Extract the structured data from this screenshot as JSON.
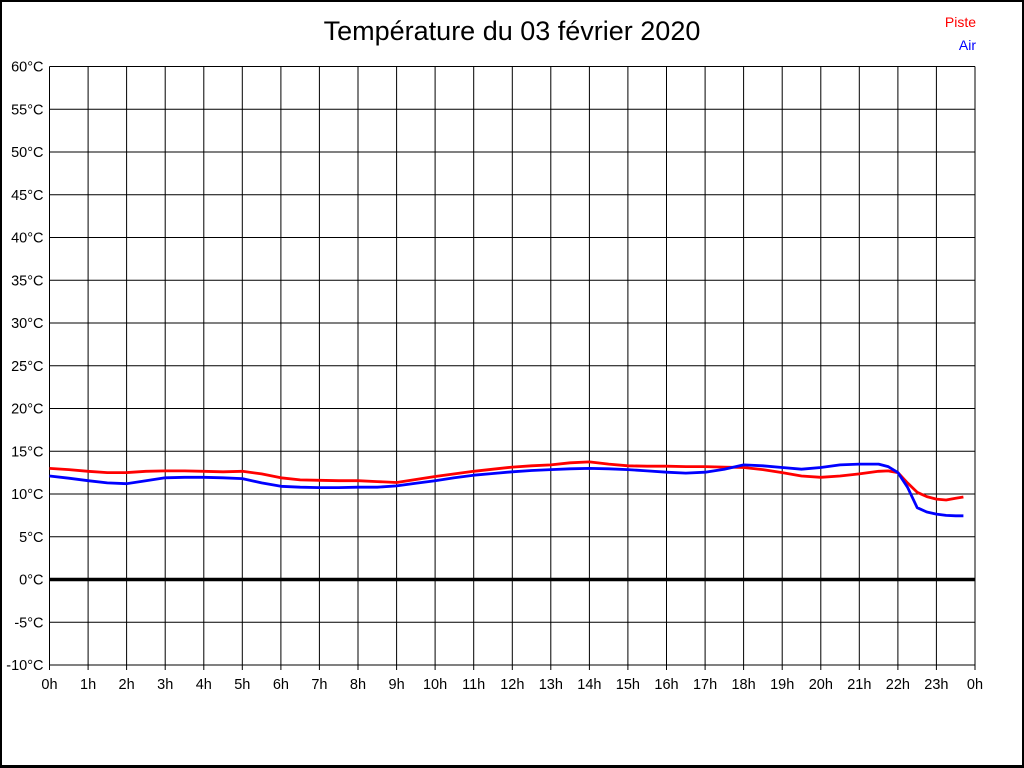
{
  "page": {
    "background": "#ffffff",
    "border_color": "#000000"
  },
  "header": {
    "title": "Température du 03 février 2020"
  },
  "legend": {
    "position": "top-right",
    "items": [
      {
        "label": "Piste",
        "color": "#ff0000"
      },
      {
        "label": "Air",
        "color": "#0000ff"
      }
    ]
  },
  "chart_data": {
    "type": "line",
    "title": "Température du 03 février 2020",
    "xlabel": "",
    "ylabel": "",
    "x_unit": "hours",
    "xlim": [
      0,
      24
    ],
    "ylim": [
      -10,
      60
    ],
    "y_tick_step": 5,
    "y_tick_suffix": "°C",
    "x_tick_labels": [
      "0h",
      "1h",
      "2h",
      "3h",
      "4h",
      "5h",
      "6h",
      "7h",
      "8h",
      "9h",
      "10h",
      "11h",
      "12h",
      "13h",
      "14h",
      "15h",
      "16h",
      "17h",
      "18h",
      "19h",
      "20h",
      "21h",
      "22h",
      "23h",
      "0h"
    ],
    "grid": true,
    "grid_color": "#000000",
    "zero_line_bold": true,
    "legend_position": "top-right",
    "series": [
      {
        "name": "Piste",
        "color": "#ff0000",
        "x": [
          0,
          0.5,
          1,
          1.5,
          2,
          2.5,
          3,
          3.5,
          4,
          4.5,
          5,
          5.5,
          6,
          6.5,
          7,
          7.5,
          8,
          8.5,
          9,
          9.5,
          10,
          10.5,
          11,
          11.5,
          12,
          12.5,
          13,
          13.5,
          14,
          14.5,
          15,
          15.5,
          16,
          16.5,
          17,
          17.5,
          18,
          18.5,
          19,
          19.5,
          20,
          20.5,
          21,
          21.5,
          21.75,
          22,
          22.25,
          22.5,
          22.75,
          23,
          23.25,
          23.5,
          23.7
        ],
        "y": [
          13.0,
          12.85,
          12.65,
          12.5,
          12.5,
          12.65,
          12.7,
          12.7,
          12.65,
          12.6,
          12.65,
          12.35,
          11.9,
          11.65,
          11.6,
          11.55,
          11.55,
          11.45,
          11.35,
          11.7,
          12.05,
          12.35,
          12.65,
          12.9,
          13.15,
          13.3,
          13.4,
          13.65,
          13.75,
          13.5,
          13.3,
          13.25,
          13.25,
          13.2,
          13.2,
          13.15,
          13.1,
          12.85,
          12.5,
          12.1,
          11.95,
          12.1,
          12.35,
          12.65,
          12.7,
          12.5,
          11.3,
          10.2,
          9.7,
          9.4,
          9.3,
          9.5,
          9.65
        ]
      },
      {
        "name": "Air",
        "color": "#0000ff",
        "x": [
          0,
          0.5,
          1,
          1.5,
          2,
          2.5,
          3,
          3.5,
          4,
          4.5,
          5,
          5.5,
          6,
          6.5,
          7,
          7.5,
          8,
          8.5,
          9,
          9.5,
          10,
          10.5,
          11,
          11.5,
          12,
          12.5,
          13,
          13.5,
          14,
          14.5,
          15,
          15.5,
          16,
          16.5,
          17,
          17.5,
          18,
          18.5,
          19,
          19.5,
          20,
          20.5,
          21,
          21.5,
          21.75,
          22,
          22.25,
          22.5,
          22.75,
          23,
          23.25,
          23.5,
          23.7
        ],
        "y": [
          12.1,
          11.85,
          11.55,
          11.3,
          11.2,
          11.55,
          11.9,
          11.95,
          11.95,
          11.9,
          11.8,
          11.3,
          10.9,
          10.8,
          10.75,
          10.75,
          10.8,
          10.8,
          10.95,
          11.25,
          11.55,
          11.9,
          12.2,
          12.4,
          12.6,
          12.75,
          12.85,
          12.95,
          13.0,
          12.95,
          12.85,
          12.7,
          12.55,
          12.45,
          12.55,
          12.9,
          13.4,
          13.3,
          13.1,
          12.9,
          13.1,
          13.4,
          13.5,
          13.5,
          13.2,
          12.5,
          10.8,
          8.4,
          7.9,
          7.65,
          7.5,
          7.45,
          7.45
        ]
      }
    ]
  }
}
